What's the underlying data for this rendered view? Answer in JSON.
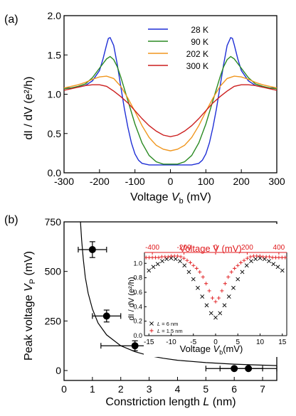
{
  "chart_data": [
    {
      "type": "line",
      "panel_label": "(a)",
      "xlabel": "Voltage V_b (mV)",
      "ylabel": "dI / dV (e²/h)",
      "xlim": [
        -300,
        300
      ],
      "ylim": [
        0,
        2.0
      ],
      "xticks": [
        -300,
        -200,
        -100,
        0,
        100,
        200,
        300
      ],
      "yticks": [
        "0.0",
        "0.5",
        "1.0",
        "1.5",
        "2.0"
      ],
      "legend_position": "top-center",
      "grid": false,
      "series": [
        {
          "name": "28 K",
          "color": "#1f2fd6",
          "x": [
            -300,
            -280,
            -260,
            -240,
            -220,
            -200,
            -190,
            -180,
            -175,
            -170,
            -160,
            -150,
            -140,
            -130,
            -120,
            -110,
            -100,
            -90,
            -80,
            -70,
            -60,
            -50,
            -40,
            -30,
            -20,
            -10,
            0,
            10,
            20,
            30,
            40,
            50,
            60,
            70,
            80,
            90,
            100,
            110,
            120,
            130,
            140,
            150,
            160,
            170,
            175,
            180,
            190,
            200,
            220,
            240,
            260,
            280,
            300
          ],
          "y": [
            1.08,
            1.08,
            1.09,
            1.11,
            1.17,
            1.3,
            1.45,
            1.63,
            1.71,
            1.72,
            1.62,
            1.38,
            1.1,
            0.82,
            0.58,
            0.38,
            0.24,
            0.16,
            0.12,
            0.11,
            0.1,
            0.1,
            0.1,
            0.1,
            0.1,
            0.1,
            0.1,
            0.1,
            0.1,
            0.1,
            0.1,
            0.1,
            0.1,
            0.11,
            0.12,
            0.16,
            0.24,
            0.38,
            0.58,
            0.82,
            1.1,
            1.38,
            1.62,
            1.72,
            1.71,
            1.63,
            1.45,
            1.3,
            1.17,
            1.11,
            1.09,
            1.08,
            1.08
          ]
        },
        {
          "name": "90 K",
          "color": "#2a8a22",
          "x": [
            -300,
            -280,
            -260,
            -240,
            -220,
            -200,
            -180,
            -170,
            -160,
            -150,
            -140,
            -120,
            -100,
            -80,
            -60,
            -40,
            -20,
            0,
            20,
            40,
            60,
            80,
            100,
            120,
            140,
            150,
            160,
            170,
            180,
            200,
            220,
            240,
            260,
            280,
            300
          ],
          "y": [
            1.07,
            1.08,
            1.1,
            1.13,
            1.21,
            1.33,
            1.45,
            1.48,
            1.44,
            1.35,
            1.22,
            0.92,
            0.62,
            0.38,
            0.22,
            0.14,
            0.11,
            0.11,
            0.11,
            0.14,
            0.22,
            0.38,
            0.62,
            0.92,
            1.22,
            1.35,
            1.44,
            1.48,
            1.45,
            1.33,
            1.21,
            1.13,
            1.1,
            1.08,
            1.07
          ]
        },
        {
          "name": "202 K",
          "color": "#f0961e",
          "x": [
            -300,
            -280,
            -260,
            -240,
            -220,
            -200,
            -180,
            -160,
            -140,
            -120,
            -100,
            -80,
            -60,
            -40,
            -20,
            0,
            20,
            40,
            60,
            80,
            100,
            120,
            140,
            160,
            180,
            200,
            220,
            240,
            260,
            280,
            300
          ],
          "y": [
            1.08,
            1.1,
            1.12,
            1.15,
            1.19,
            1.22,
            1.23,
            1.2,
            1.1,
            0.95,
            0.78,
            0.6,
            0.45,
            0.35,
            0.3,
            0.28,
            0.3,
            0.35,
            0.45,
            0.6,
            0.78,
            0.95,
            1.1,
            1.2,
            1.23,
            1.22,
            1.19,
            1.15,
            1.12,
            1.1,
            1.08
          ]
        },
        {
          "name": "300 K",
          "color": "#cc1f1f",
          "x": [
            -300,
            -280,
            -260,
            -240,
            -220,
            -200,
            -180,
            -160,
            -140,
            -120,
            -100,
            -80,
            -60,
            -40,
            -20,
            0,
            20,
            40,
            60,
            80,
            100,
            120,
            140,
            160,
            180,
            200,
            220,
            240,
            260,
            280,
            300
          ],
          "y": [
            1.05,
            1.07,
            1.09,
            1.11,
            1.12,
            1.12,
            1.1,
            1.04,
            0.97,
            0.89,
            0.79,
            0.69,
            0.6,
            0.53,
            0.48,
            0.46,
            0.48,
            0.53,
            0.6,
            0.69,
            0.79,
            0.89,
            0.97,
            1.04,
            1.1,
            1.12,
            1.12,
            1.11,
            1.09,
            1.07,
            1.05
          ]
        }
      ]
    },
    {
      "type": "scatter",
      "panel_label": "(b)",
      "xlabel": "Constriction length L (nm)",
      "ylabel": "Peak voltage V_P (mV)",
      "xlim": [
        0,
        7.5
      ],
      "ylim": [
        -50,
        750
      ],
      "xticks": [
        0,
        1,
        2,
        3,
        4,
        5,
        6,
        7
      ],
      "yticks": [
        0,
        250,
        500,
        750
      ],
      "points": [
        {
          "x": 1.0,
          "y": 610,
          "xerr": 0.5,
          "yerr": 40
        },
        {
          "x": 1.5,
          "y": 275,
          "xerr": 0.5,
          "yerr": 30
        },
        {
          "x": 2.5,
          "y": 125,
          "xerr": 1.2,
          "yerr": 25
        },
        {
          "x": 6.0,
          "y": 10,
          "xerr": 1.0,
          "yerr": 0
        },
        {
          "x": 6.5,
          "y": 10,
          "xerr": 1.0,
          "yerr": 0
        }
      ],
      "fit_curve": {
        "color": "#000000",
        "x": [
          0.58,
          0.62,
          0.68,
          0.75,
          0.85,
          1.0,
          1.2,
          1.5,
          2.0,
          2.5,
          3.0,
          3.5,
          4.0,
          5.0,
          6.0,
          7.0,
          7.5
        ],
        "y": [
          750,
          660,
          560,
          470,
          390,
          310,
          240,
          180,
          125,
          95,
          75,
          62,
          52,
          40,
          32,
          27,
          25
        ]
      }
    },
    {
      "type": "scatter",
      "panel_label": "inset",
      "xlabel": "Voltage V_b(mV)",
      "top_xlabel": "Voltage V (mV)",
      "ylabel": "dI / dV (e²/h)",
      "xlim": [
        -16,
        16
      ],
      "top_xlim": [
        -450,
        450
      ],
      "ylim": [
        0.0,
        1.15
      ],
      "xticks": [
        -15,
        -10,
        -5,
        0,
        5,
        10,
        15
      ],
      "top_xticks": [
        -400,
        -200,
        0,
        200,
        400
      ],
      "yticks": [
        "0.0",
        "0.2",
        "0.4",
        "0.6",
        "0.8",
        "1.0"
      ],
      "accent_color": "#e0191c",
      "series": [
        {
          "name": "L = 6 nm",
          "color": "#000000",
          "marker": "x",
          "axis": "bottom",
          "x": [
            -15,
            -14,
            -13,
            -12,
            -11,
            -10,
            -9,
            -8,
            -7,
            -6,
            -5,
            -4,
            -3,
            -2,
            -1,
            0,
            1,
            2,
            3,
            4,
            5,
            6,
            7,
            8,
            9,
            10,
            11,
            12,
            13,
            14,
            15
          ],
          "y": [
            0.9,
            0.95,
            0.99,
            1.03,
            1.06,
            1.07,
            1.06,
            1.03,
            0.97,
            0.88,
            0.78,
            0.66,
            0.54,
            0.42,
            0.31,
            0.25,
            0.31,
            0.42,
            0.54,
            0.66,
            0.78,
            0.88,
            0.97,
            1.03,
            1.06,
            1.07,
            1.06,
            1.03,
            0.99,
            0.95,
            0.9
          ]
        },
        {
          "name": "L = 1.5 nm",
          "color": "#e0191c",
          "marker": "+",
          "axis": "top",
          "x": [
            -440,
            -420,
            -400,
            -380,
            -360,
            -340,
            -320,
            -300,
            -280,
            -260,
            -240,
            -220,
            -200,
            -180,
            -160,
            -140,
            -120,
            -100,
            -80,
            -60,
            -40,
            -20,
            0,
            20,
            40,
            60,
            80,
            100,
            120,
            140,
            160,
            180,
            200,
            220,
            240,
            260,
            280,
            300,
            320,
            340,
            360,
            380,
            400,
            420,
            440
          ],
          "y": [
            1.08,
            1.08,
            1.08,
            1.08,
            1.08,
            1.09,
            1.09,
            1.09,
            1.1,
            1.1,
            1.1,
            1.09,
            1.07,
            1.04,
            1.01,
            0.97,
            0.93,
            0.88,
            0.81,
            0.72,
            0.62,
            0.52,
            0.47,
            0.52,
            0.62,
            0.72,
            0.81,
            0.88,
            0.93,
            0.97,
            1.01,
            1.04,
            1.07,
            1.09,
            1.1,
            1.1,
            1.1,
            1.09,
            1.09,
            1.09,
            1.08,
            1.08,
            1.08,
            1.08,
            1.08
          ]
        }
      ]
    }
  ]
}
